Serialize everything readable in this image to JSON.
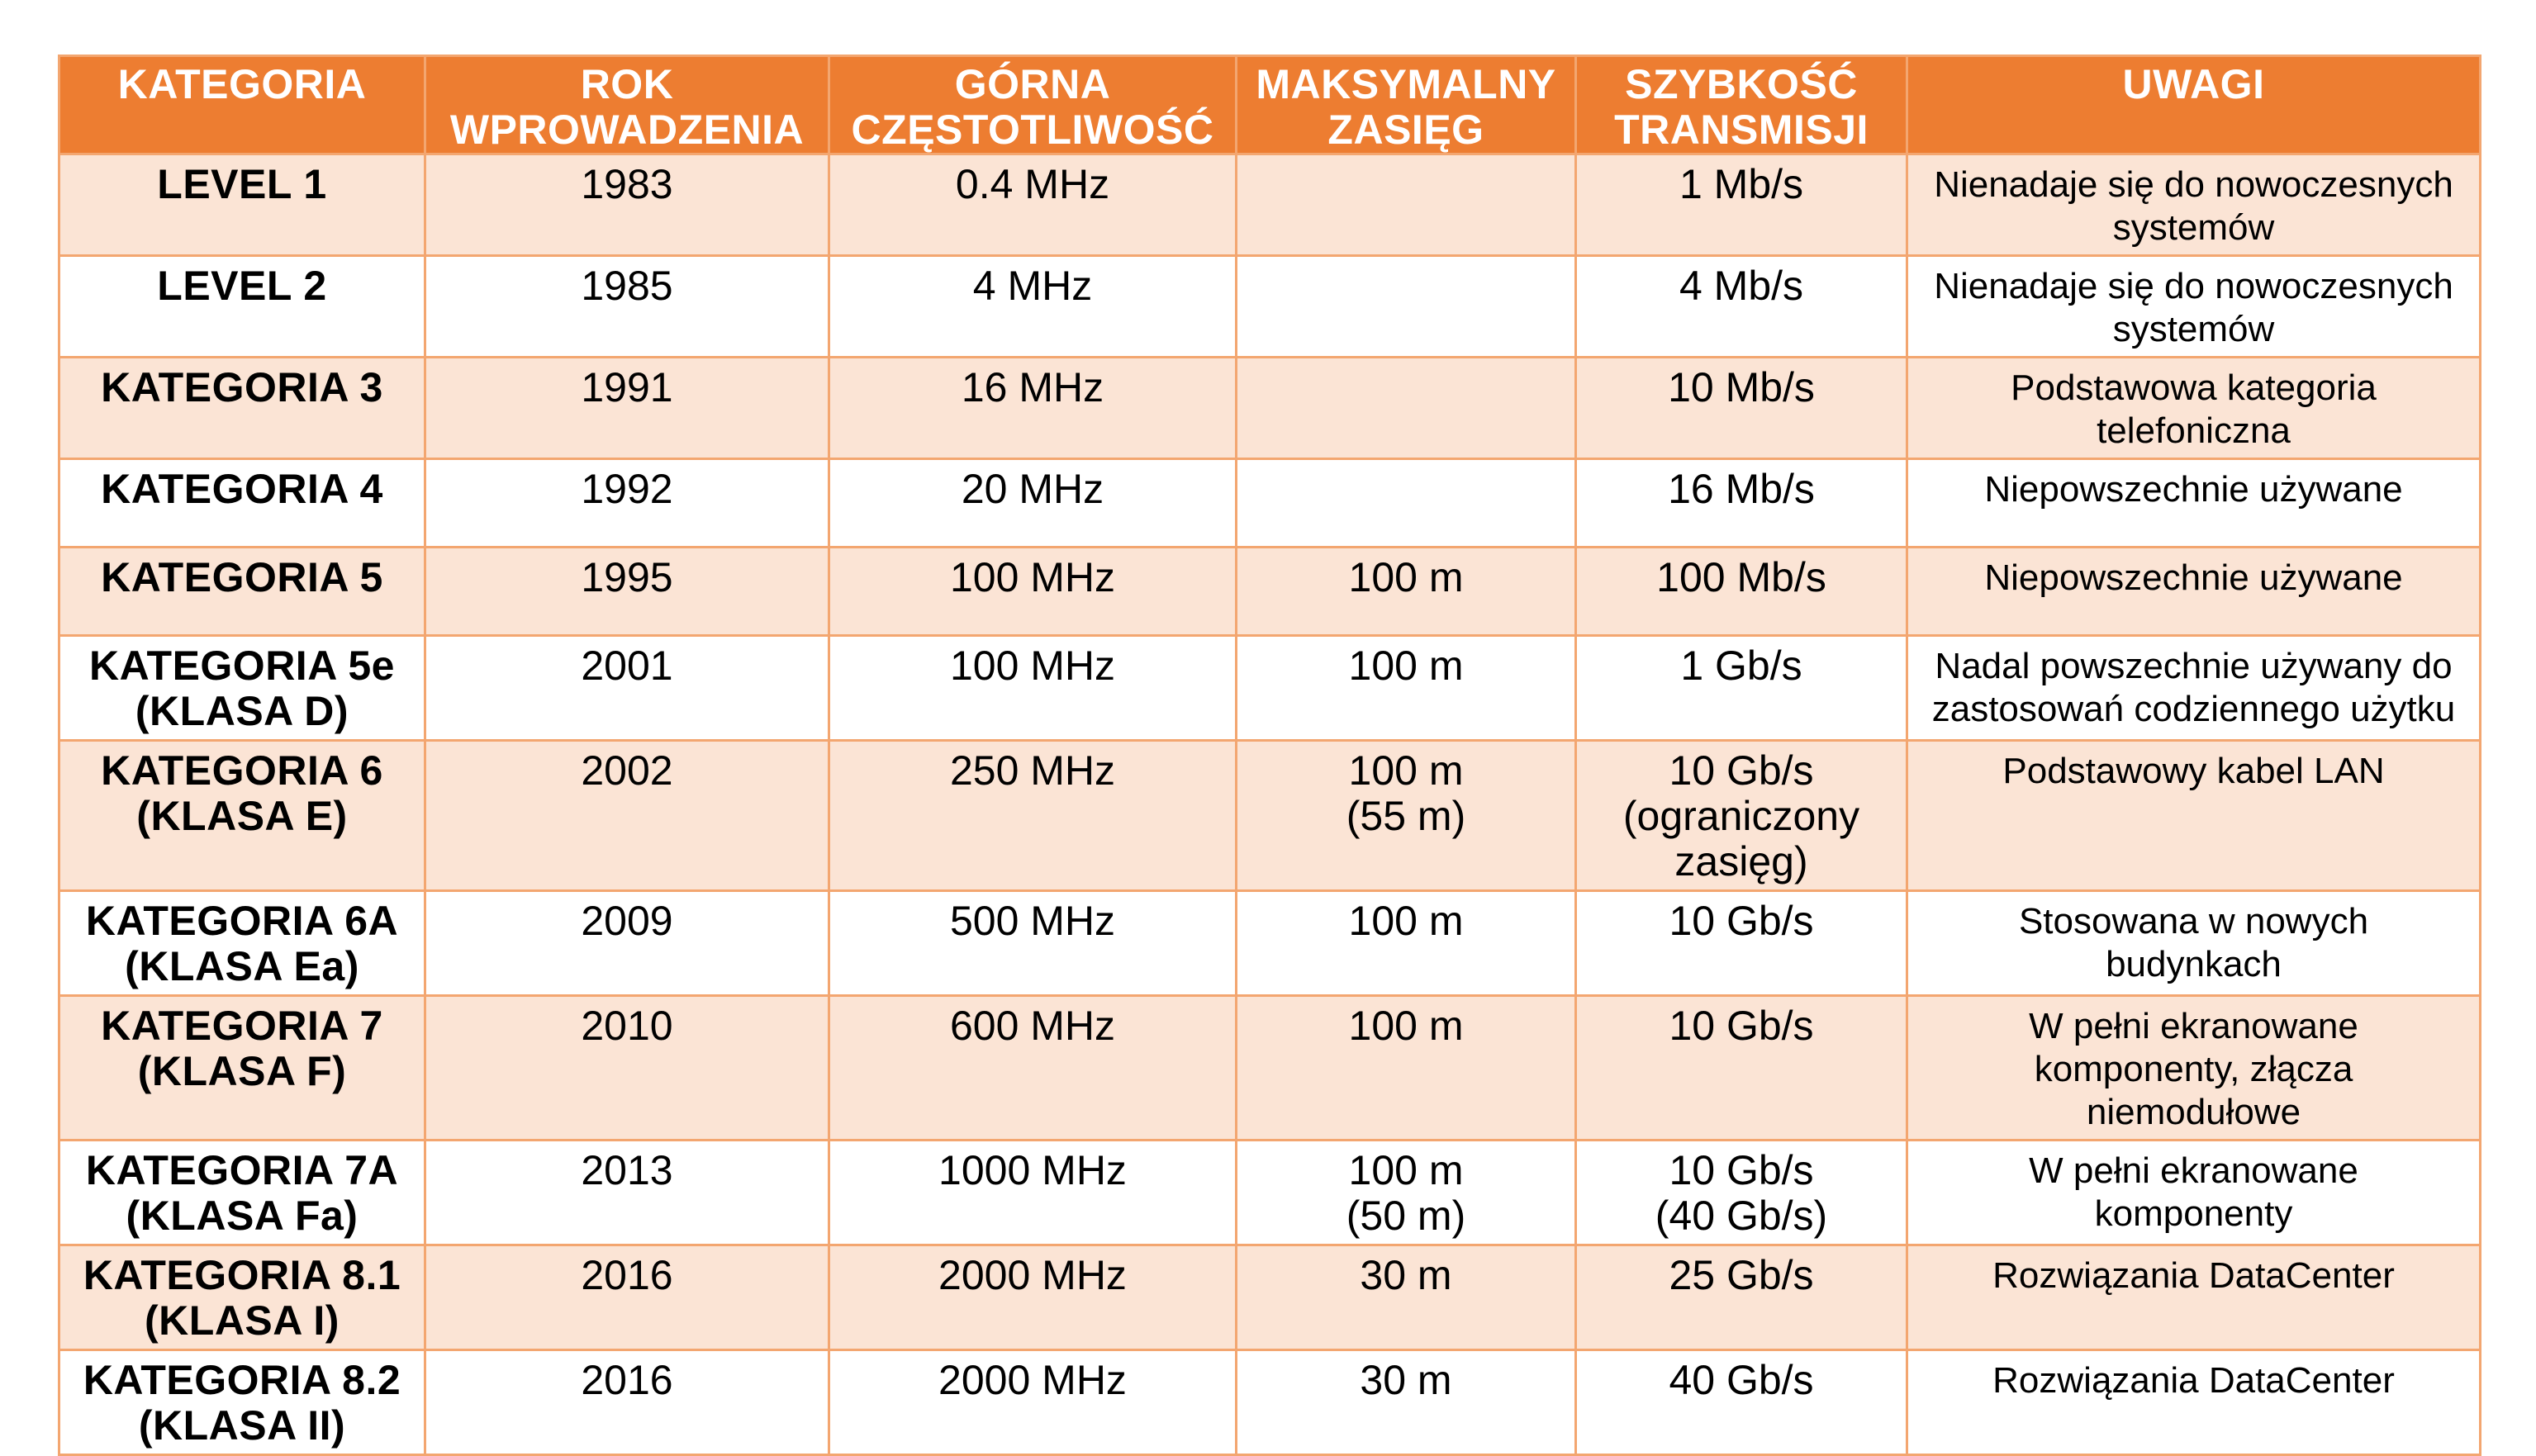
{
  "chart_data": {
    "type": "table",
    "title": "",
    "columns": [
      "KATEGORIA",
      "ROK\nWPROWADZENIA",
      "GÓRNA\nCZĘSTOTLIWOŚĆ",
      "MAKSYMALNY\nZASIĘG",
      "SZYBKOŚĆ\nTRANSMISJI",
      "UWAGI"
    ],
    "rows": [
      {
        "category": "LEVEL 1",
        "year": "1983",
        "frequency": "0.4 MHz",
        "range": "",
        "speed": "1 Mb/s",
        "notes": "Nienadaje się do nowoczesnych\nsystemów"
      },
      {
        "category": "LEVEL 2",
        "year": "1985",
        "frequency": "4 MHz",
        "range": "",
        "speed": "4 Mb/s",
        "notes": "Nienadaje się do nowoczesnych\nsystemów"
      },
      {
        "category": "KATEGORIA 3",
        "year": "1991",
        "frequency": "16 MHz",
        "range": "",
        "speed": "10 Mb/s",
        "notes": "Podstawowa kategoria\ntelefoniczna"
      },
      {
        "category": "KATEGORIA 4",
        "year": "1992",
        "frequency": "20 MHz",
        "range": "",
        "speed": "16 Mb/s",
        "notes": "Niepowszechnie używane"
      },
      {
        "category": "KATEGORIA 5",
        "year": "1995",
        "frequency": "100 MHz",
        "range": "100 m",
        "speed": "100 Mb/s",
        "notes": "Niepowszechnie używane"
      },
      {
        "category": "KATEGORIA 5e\n(KLASA D)",
        "year": "2001",
        "frequency": "100 MHz",
        "range": "100 m",
        "speed": "1 Gb/s",
        "notes": "Nadal powszechnie używany do\nzastosowań codziennego użytku"
      },
      {
        "category": "KATEGORIA 6\n(KLASA E)",
        "year": "2002",
        "frequency": "250 MHz",
        "range": "100 m\n(55 m)",
        "speed": "10 Gb/s\n(ograniczony\nzasięg)",
        "notes": "Podstawowy kabel LAN"
      },
      {
        "category": "KATEGORIA 6A\n(KLASA Ea)",
        "year": "2009",
        "frequency": "500 MHz",
        "range": "100 m",
        "speed": "10 Gb/s",
        "notes": "Stosowana w nowych\nbudynkach"
      },
      {
        "category": "KATEGORIA 7\n(KLASA F)",
        "year": "2010",
        "frequency": "600 MHz",
        "range": "100 m",
        "speed": "10 Gb/s",
        "notes": "W pełni ekranowane\nkomponenty, złącza\nniemodułowe"
      },
      {
        "category": "KATEGORIA 7A\n(KLASA Fa)",
        "year": "2013",
        "frequency": "1000 MHz",
        "range": "100 m\n(50 m)",
        "speed": "10 Gb/s\n(40 Gb/s)",
        "notes": "W pełni ekranowane\nkomponenty"
      },
      {
        "category": "KATEGORIA 8.1\n(KLASA I)",
        "year": "2016",
        "frequency": "2000 MHz",
        "range": "30 m",
        "speed": "25 Gb/s",
        "notes": "Rozwiązania DataCenter"
      },
      {
        "category": "KATEGORIA 8.2\n(KLASA II)",
        "year": "2016",
        "frequency": "2000 MHz",
        "range": "30 m",
        "speed": "40 Gb/s",
        "notes": "Rozwiązania DataCenter"
      }
    ]
  },
  "colors": {
    "header_bg": "#ED7D31",
    "header_text": "#FFFFFF",
    "row_alt_bg": "#FBE4D5",
    "row_bg": "#FFFFFF",
    "border": "#F3A670",
    "text": "#000000",
    "page_bg": "#FFFFFF"
  }
}
